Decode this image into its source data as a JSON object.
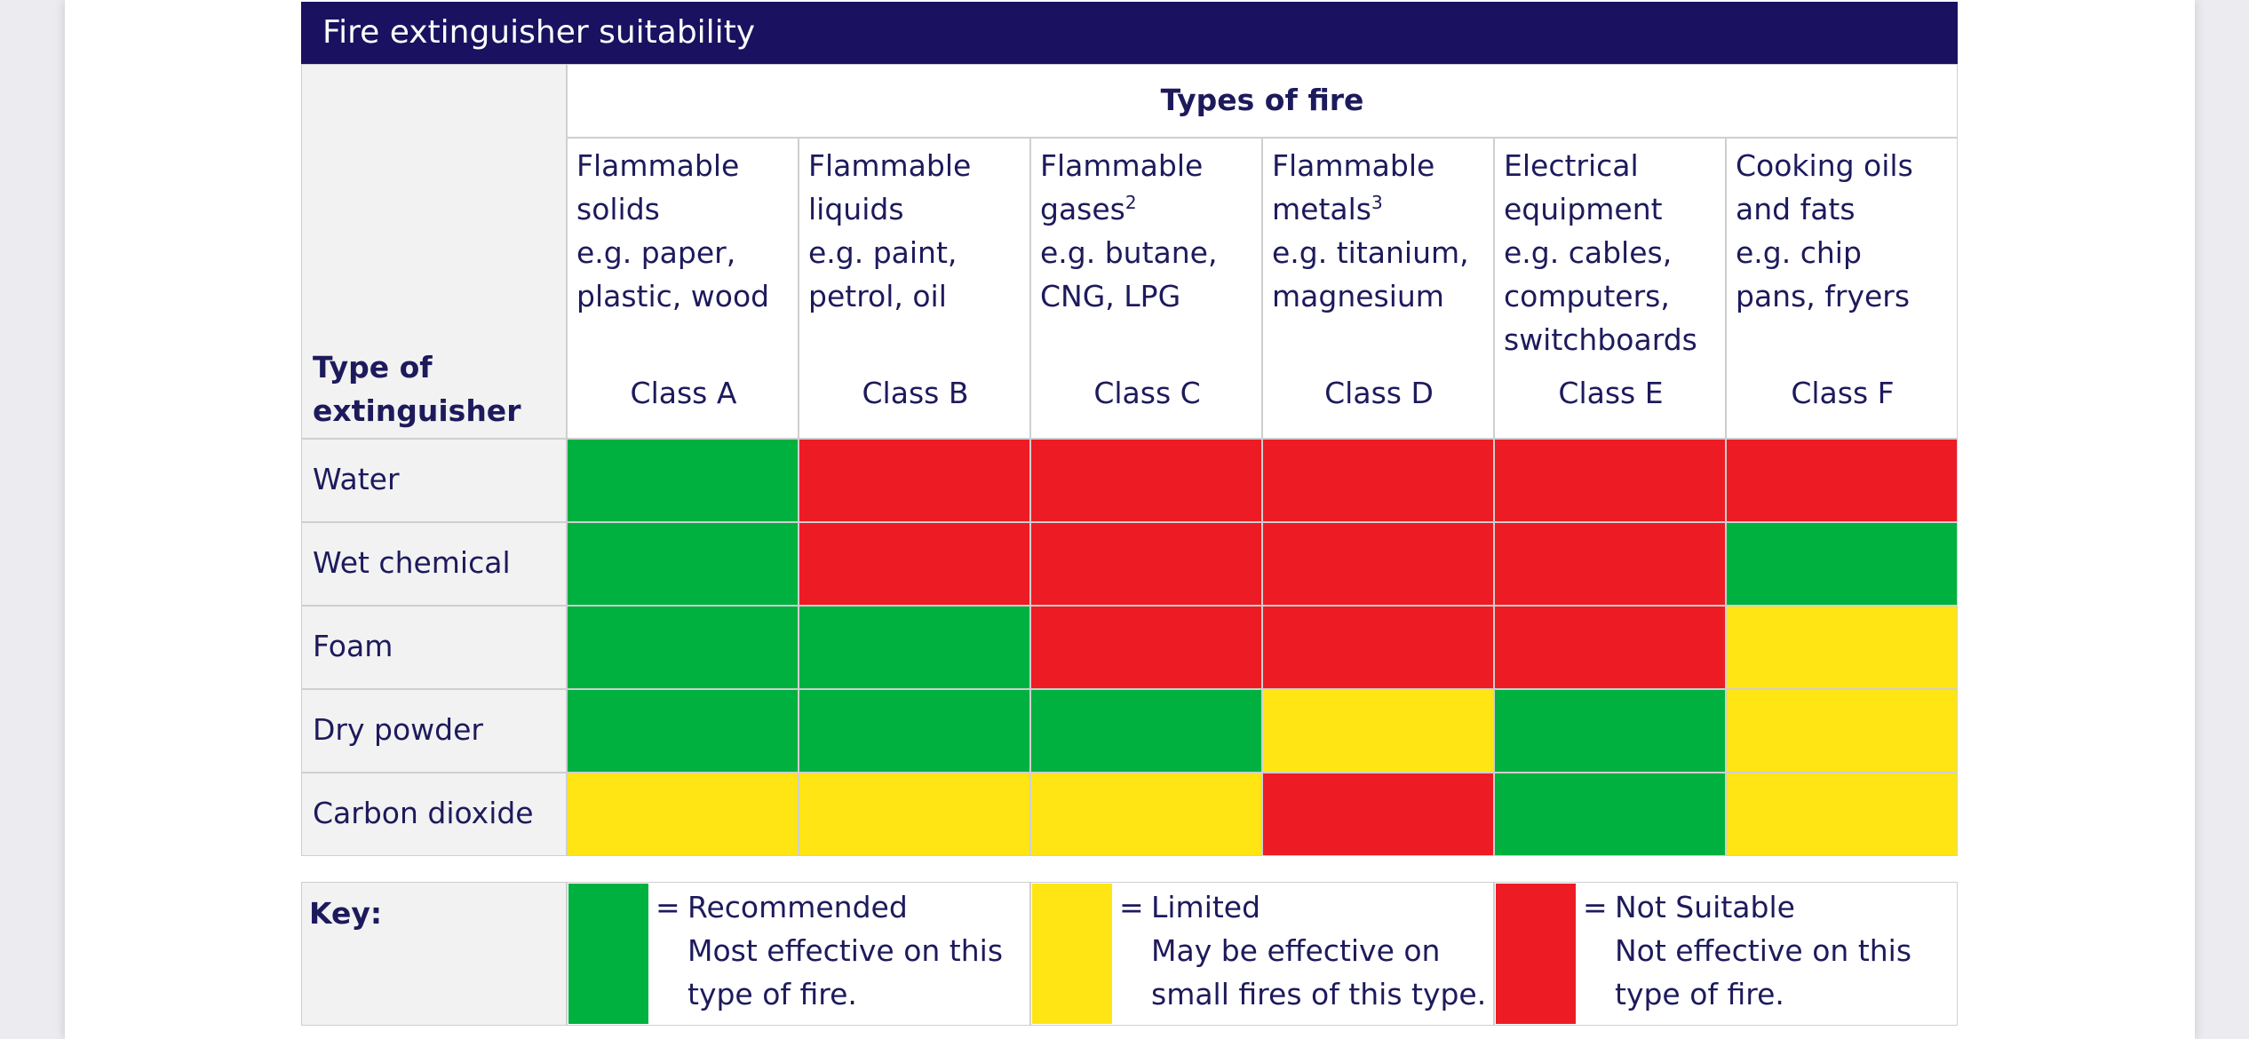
{
  "title": "Fire extinguisher suitability",
  "table": {
    "corner": "Type of extinguisher",
    "group_header": "Types of fire",
    "columns": [
      {
        "name": "Flammable solids",
        "example": "e.g. paper, plastic, wood",
        "class": "Class A"
      },
      {
        "name": "Flammable liquids",
        "example": "e.g. paint, petrol, oil",
        "class": "Class B"
      },
      {
        "name": "Flammable gases",
        "note": "2",
        "example": "e.g. butane, CNG, LPG",
        "class": "Class C"
      },
      {
        "name": "Flammable metals",
        "note": "3",
        "example": "e.g. titanium, magnesium",
        "class": "Class D"
      },
      {
        "name": "Electrical equipment",
        "example": "e.g. cables, computers, switchboards",
        "class": "Class E"
      },
      {
        "name": "Cooking oils and fats",
        "example": "e.g. chip pans, fryers",
        "class": "Class F"
      }
    ],
    "rows": [
      {
        "label": "Water",
        "cells": [
          "#00b140",
          "#ed1c24",
          "#ed1c24",
          "#ed1c24",
          "#ed1c24",
          "#ed1c24"
        ]
      },
      {
        "label": "Wet chemical",
        "cells": [
          "#00b140",
          "#ed1c24",
          "#ed1c24",
          "#ed1c24",
          "#ed1c24",
          "#00b140"
        ]
      },
      {
        "label": "Foam",
        "cells": [
          "#00b140",
          "#00b140",
          "#ed1c24",
          "#ed1c24",
          "#ed1c24",
          "#ffe513"
        ]
      },
      {
        "label": "Dry powder",
        "cells": [
          "#00b140",
          "#00b140",
          "#00b140",
          "#ffe513",
          "#00b140",
          "#ffe513"
        ]
      },
      {
        "label": "Carbon dioxide",
        "cells": [
          "#ffe513",
          "#ffe513",
          "#ffe513",
          "#ed1c24",
          "#00b140",
          "#ffe513"
        ]
      }
    ]
  },
  "key": {
    "label": "Key:",
    "equals": "=",
    "items": [
      {
        "color": "#00b140",
        "name": "Recommended",
        "description": "Most effective on this type of fire."
      },
      {
        "color": "#ffe513",
        "name": "Limited",
        "description": "May be effective on small fires of this type."
      },
      {
        "color": "#ed1c24",
        "name": "Not Suitable",
        "description": "Not effective on this type of fire."
      }
    ]
  }
}
